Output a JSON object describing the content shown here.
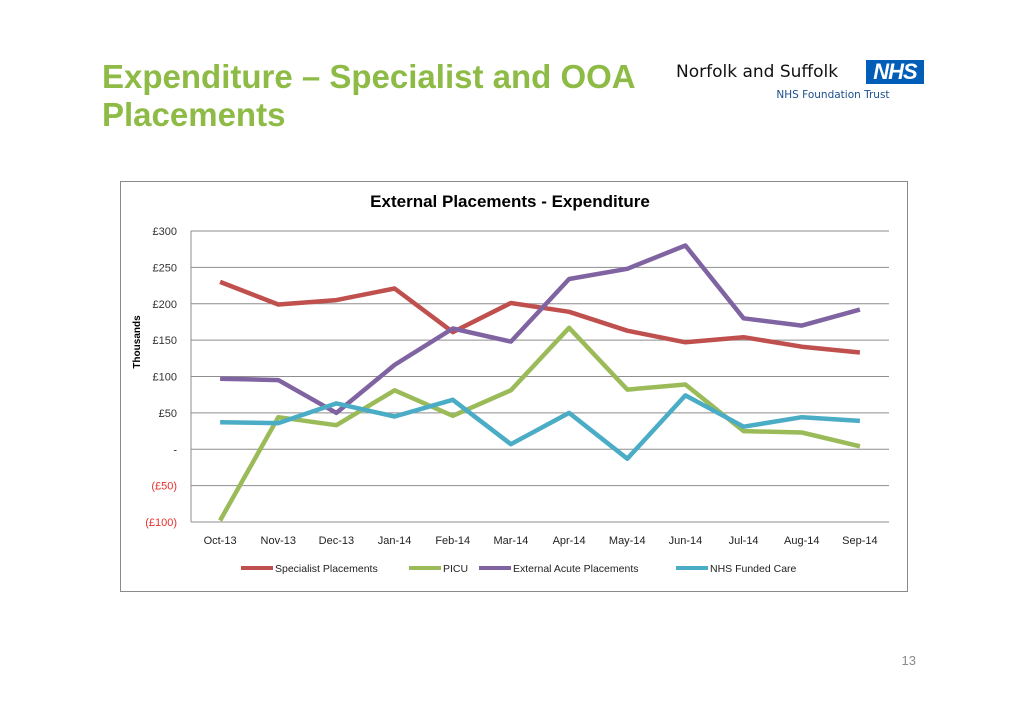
{
  "slide": {
    "title": "Expenditure – Specialist and OOA Placements",
    "page_number": "13"
  },
  "logo": {
    "organisation": "Norfolk and Suffolk",
    "badge": "NHS",
    "trust": "NHS Foundation Trust",
    "badge_color": "#005eb8"
  },
  "chart_data": {
    "type": "line",
    "title": "External Placements - Expenditure",
    "xlabel": "",
    "ylabel": "Thousands",
    "ylim": [
      -100,
      300
    ],
    "yticks": [
      {
        "value": 300,
        "label": "£300",
        "color": "#333333"
      },
      {
        "value": 250,
        "label": "£250",
        "color": "#333333"
      },
      {
        "value": 200,
        "label": "£200",
        "color": "#333333"
      },
      {
        "value": 150,
        "label": "£150",
        "color": "#333333"
      },
      {
        "value": 100,
        "label": "£100",
        "color": "#333333"
      },
      {
        "value": 50,
        "label": "£50",
        "color": "#333333"
      },
      {
        "value": 0,
        "label": "-",
        "color": "#333333"
      },
      {
        "value": -50,
        "label": "(£50)",
        "color": "#e8312f"
      },
      {
        "value": -100,
        "label": "(£100)",
        "color": "#e8312f"
      }
    ],
    "grid": true,
    "legend_position": "bottom",
    "categories": [
      "Oct-13",
      "Nov-13",
      "Dec-13",
      "Jan-14",
      "Feb-14",
      "Mar-14",
      "Apr-14",
      "May-14",
      "Jun-14",
      "Jul-14",
      "Aug-14",
      "Sep-14"
    ],
    "series": [
      {
        "name": "Specialist Placements",
        "color": "#c0504d",
        "values": [
          230,
          199,
          205,
          221,
          161,
          201,
          189,
          163,
          147,
          154,
          141,
          133
        ]
      },
      {
        "name": "PICU",
        "color": "#9bbb59",
        "values": [
          -98,
          44,
          33,
          81,
          46,
          81,
          167,
          82,
          89,
          25,
          23,
          4
        ]
      },
      {
        "name": "External Acute Placements",
        "color": "#8064a2",
        "values": [
          97,
          95,
          50,
          116,
          166,
          148,
          234,
          248,
          280,
          180,
          170,
          192
        ]
      },
      {
        "name": "NHS Funded Care",
        "color": "#4bacc6",
        "values": [
          37,
          36,
          63,
          45,
          68,
          7,
          50,
          -13,
          74,
          31,
          44,
          39
        ]
      }
    ]
  }
}
